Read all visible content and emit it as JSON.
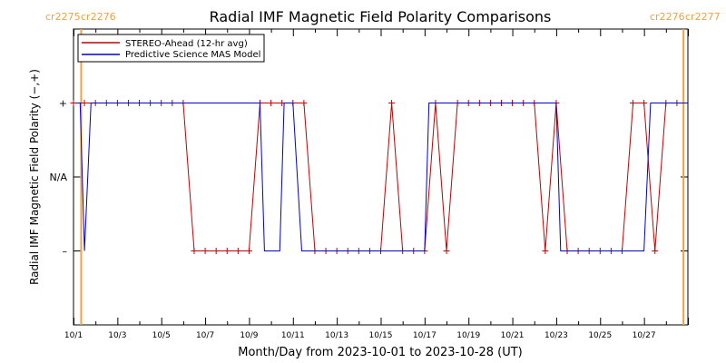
{
  "chart_data": {
    "type": "line",
    "title": "Radial IMF Magnetic Field Polarity Comparisons",
    "xlabel": "Month/Day from 2023-10-01 to 2023-10-28 (UT)",
    "ylabel": "Radial IMF Magnetic Field Polarity (−,+)",
    "x_range_days": [
      0,
      28
    ],
    "x_ticks": [
      {
        "day": 0,
        "label": "10/1"
      },
      {
        "day": 2,
        "label": "10/3"
      },
      {
        "day": 4,
        "label": "10/5"
      },
      {
        "day": 6,
        "label": "10/7"
      },
      {
        "day": 8,
        "label": "10/9"
      },
      {
        "day": 10,
        "label": "10/11"
      },
      {
        "day": 12,
        "label": "10/13"
      },
      {
        "day": 14,
        "label": "10/15"
      },
      {
        "day": 16,
        "label": "10/17"
      },
      {
        "day": 18,
        "label": "10/19"
      },
      {
        "day": 20,
        "label": "10/21"
      },
      {
        "day": 22,
        "label": "10/23"
      },
      {
        "day": 24,
        "label": "10/25"
      },
      {
        "day": 26,
        "label": "10/27"
      }
    ],
    "y_range": [
      -2,
      2
    ],
    "y_ticks": [
      {
        "value": 1,
        "label": "+"
      },
      {
        "value": 0,
        "label": "N/A"
      },
      {
        "value": -1,
        "label": "–"
      }
    ],
    "grid": false,
    "legend_position": "top-left",
    "carrington_markers": [
      {
        "day": 0.35,
        "label_left": "cr2275",
        "label_right": "cr2276"
      },
      {
        "day": 27.8,
        "label_left": "cr2276",
        "label_right": "cr2277"
      }
    ],
    "series": [
      {
        "name": "STEREO-Ahead (12-hr avg)",
        "color": "#c00000",
        "markers": "plus",
        "points": [
          [
            0.0,
            1
          ],
          [
            0.5,
            1
          ],
          [
            1.0,
            1
          ],
          [
            1.5,
            1
          ],
          [
            2.0,
            1
          ],
          [
            2.5,
            1
          ],
          [
            3.0,
            1
          ],
          [
            3.5,
            1
          ],
          [
            4.0,
            1
          ],
          [
            4.5,
            1
          ],
          [
            5.0,
            1
          ],
          [
            5.5,
            -1
          ],
          [
            6.0,
            -1
          ],
          [
            6.5,
            -1
          ],
          [
            7.0,
            -1
          ],
          [
            7.5,
            -1
          ],
          [
            8.0,
            -1
          ],
          [
            8.5,
            1
          ],
          [
            9.0,
            1
          ],
          [
            9.5,
            1
          ],
          [
            10.0,
            1
          ],
          [
            10.5,
            1
          ],
          [
            11.0,
            -1
          ],
          [
            11.5,
            -1
          ],
          [
            12.0,
            -1
          ],
          [
            12.5,
            -1
          ],
          [
            13.0,
            -1
          ],
          [
            13.5,
            -1
          ],
          [
            14.0,
            -1
          ],
          [
            14.5,
            1
          ],
          [
            15.0,
            -1
          ],
          [
            15.5,
            -1
          ],
          [
            16.0,
            -1
          ],
          [
            16.5,
            1
          ],
          [
            17.0,
            -1
          ],
          [
            17.5,
            1
          ],
          [
            18.0,
            1
          ],
          [
            18.5,
            1
          ],
          [
            19.0,
            1
          ],
          [
            19.5,
            1
          ],
          [
            20.0,
            1
          ],
          [
            20.5,
            1
          ],
          [
            21.0,
            1
          ],
          [
            21.5,
            -1
          ],
          [
            22.0,
            1
          ],
          [
            22.5,
            -1
          ],
          [
            23.0,
            -1
          ],
          [
            23.5,
            -1
          ],
          [
            24.0,
            -1
          ],
          [
            24.5,
            -1
          ],
          [
            25.0,
            -1
          ],
          [
            25.5,
            1
          ],
          [
            26.0,
            1
          ],
          [
            26.5,
            -1
          ],
          [
            27.0,
            1
          ],
          [
            27.5,
            1
          ]
        ]
      },
      {
        "name": "Predictive Science MAS Model",
        "color": "#0000cc",
        "markers": "none",
        "points": [
          [
            0.1,
            1
          ],
          [
            0.3,
            1
          ],
          [
            0.5,
            -1
          ],
          [
            0.8,
            1
          ],
          [
            4.5,
            1
          ],
          [
            8.5,
            1
          ],
          [
            8.7,
            -1
          ],
          [
            9.4,
            -1
          ],
          [
            9.6,
            1
          ],
          [
            10.0,
            1
          ],
          [
            10.4,
            -1
          ],
          [
            16.0,
            -1
          ],
          [
            16.2,
            1
          ],
          [
            22.0,
            1
          ],
          [
            22.2,
            -1
          ],
          [
            26.0,
            -1
          ],
          [
            26.3,
            1
          ],
          [
            28.0,
            1
          ]
        ]
      }
    ]
  }
}
